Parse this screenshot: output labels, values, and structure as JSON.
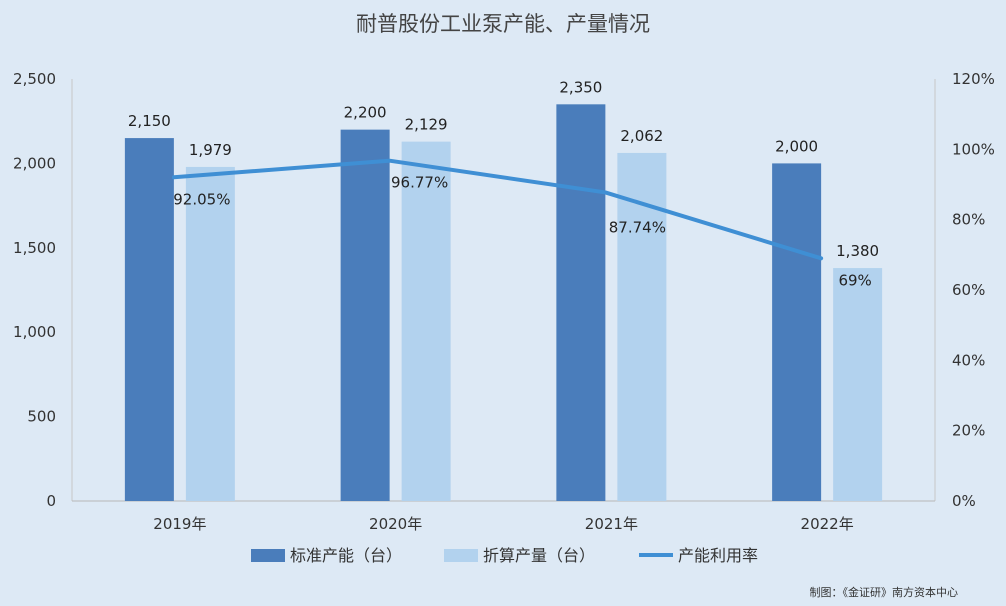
{
  "chart_data": {
    "type": "bar",
    "title": "耐普股份工业泵产能、产量情况",
    "categories": [
      "2019年",
      "2020年",
      "2021年",
      "2022年"
    ],
    "series": [
      {
        "name": "标准产能（台）",
        "type": "bar",
        "axis": "left",
        "color": "#4a7dbb",
        "values": [
          2150,
          2200,
          2350,
          2000
        ],
        "labels": [
          "2,150",
          "2,200",
          "2,350",
          "2,000"
        ]
      },
      {
        "name": "折算产量（台）",
        "type": "bar",
        "axis": "left",
        "color": "#b2d2ee",
        "values": [
          1979,
          2129,
          2062,
          1380
        ],
        "labels": [
          "1,979",
          "2,129",
          "2,062",
          "1,380"
        ]
      },
      {
        "name": "产能利用率",
        "type": "line",
        "axis": "right",
        "color": "#3f8fd4",
        "values": [
          92.05,
          96.77,
          87.74,
          69
        ],
        "labels": [
          "92.05%",
          "96.77%",
          "87.74%",
          "69%"
        ]
      }
    ],
    "y_left": {
      "range": [
        0,
        2500
      ],
      "ticks": [
        "0",
        "500",
        "1,000",
        "1,500",
        "2,000",
        "2,500"
      ]
    },
    "y_right": {
      "range": [
        0,
        120
      ],
      "ticks": [
        "0%",
        "20%",
        "40%",
        "60%",
        "80%",
        "100%",
        "120%"
      ]
    },
    "grid": false,
    "legend_position": "bottom"
  },
  "credit": "制图：《金证研》南方资本中心"
}
